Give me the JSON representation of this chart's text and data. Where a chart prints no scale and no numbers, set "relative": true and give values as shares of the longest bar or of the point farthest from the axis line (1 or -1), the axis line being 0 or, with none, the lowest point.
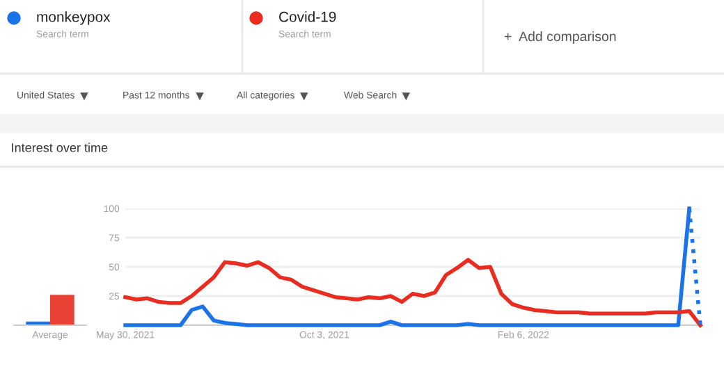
{
  "chart_data": [
    {
      "type": "line",
      "title": "Interest over time",
      "annotations": [
        "Search term",
        "Search term",
        "+  Add comparison",
        "United States",
        "Past 12 months",
        "All categories",
        "Web Search"
      ],
      "x": [
        "2021-05-30",
        "2021-06-06",
        "2021-06-13",
        "2021-06-20",
        "2021-06-27",
        "2021-07-04",
        "2021-07-11",
        "2021-07-18",
        "2021-07-25",
        "2021-08-01",
        "2021-08-08",
        "2021-08-15",
        "2021-08-22",
        "2021-08-29",
        "2021-09-05",
        "2021-09-12",
        "2021-09-19",
        "2021-09-26",
        "2021-10-03",
        "2021-10-10",
        "2021-10-17",
        "2021-10-24",
        "2021-10-31",
        "2021-11-07",
        "2021-11-14",
        "2021-11-21",
        "2021-11-28",
        "2021-12-05",
        "2021-12-12",
        "2021-12-19",
        "2021-12-26",
        "2022-01-02",
        "2022-01-09",
        "2022-01-16",
        "2022-01-23",
        "2022-01-30",
        "2022-02-06",
        "2022-02-13",
        "2022-02-20",
        "2022-02-27",
        "2022-03-06",
        "2022-03-13",
        "2022-03-20",
        "2022-03-27",
        "2022-04-03",
        "2022-04-10",
        "2022-04-17",
        "2022-04-24",
        "2022-05-01",
        "2022-05-08",
        "2022-05-15",
        "2022-05-22",
        "2022-05-29"
      ],
      "series": [
        {
          "name": "monkeypox",
          "color": "#1a73e8",
          "values": [
            0,
            0,
            0,
            0,
            0,
            0,
            13,
            16,
            4,
            2,
            1,
            0,
            0,
            0,
            0,
            0,
            0,
            0,
            0,
            0,
            0,
            0,
            0,
            0,
            3,
            0,
            0,
            0,
            0,
            0,
            0,
            1,
            0,
            0,
            0,
            0,
            0,
            0,
            0,
            0,
            0,
            0,
            0,
            0,
            0,
            0,
            0,
            0,
            0,
            0,
            0,
            100,
            null
          ]
        },
        {
          "name": "Covid-19",
          "color": "#ea2b1f",
          "values": [
            24,
            22,
            23,
            20,
            19,
            19,
            25,
            33,
            41,
            54,
            53,
            51,
            54,
            49,
            41,
            39,
            33,
            30,
            27,
            24,
            23,
            22,
            24,
            23,
            25,
            20,
            27,
            25,
            28,
            43,
            49,
            56,
            49,
            50,
            27,
            18,
            15,
            13,
            12,
            11,
            11,
            11,
            10,
            10,
            10,
            10,
            10,
            10,
            11,
            11,
            11,
            12,
            0
          ]
        },
        {
          "color": "#1a73e8",
          "line_style": "dotted",
          "values": [
            null,
            null,
            null,
            null,
            null,
            null,
            null,
            null,
            null,
            null,
            null,
            null,
            null,
            null,
            null,
            null,
            null,
            null,
            null,
            null,
            null,
            null,
            null,
            null,
            null,
            null,
            null,
            null,
            null,
            null,
            null,
            null,
            null,
            null,
            null,
            null,
            null,
            null,
            null,
            null,
            null,
            null,
            null,
            null,
            null,
            null,
            null,
            null,
            null,
            null,
            null,
            100,
            0
          ]
        }
      ],
      "xlim": [
        "2021-05-30",
        "2022-05-29"
      ],
      "xticks": [
        {
          "value": "2021-05-30",
          "label": "May 30, 2021"
        },
        {
          "value": "2021-10-03",
          "label": "Oct 3, 2021"
        },
        {
          "value": "2022-02-06",
          "label": "Feb 6, 2022"
        }
      ],
      "ylim": [
        0,
        100
      ],
      "yticks": [
        {
          "value": 0,
          "label": null
        },
        25,
        50,
        75,
        100
      ],
      "grid": "y",
      "legend": "top",
      "line_style": "solid",
      "marker": "none"
    },
    {
      "type": "bar",
      "relative": true,
      "categories": [
        "Average"
      ],
      "series": [
        {
          "color": "#1a73e8",
          "values": [
            0.12
          ]
        },
        {
          "color": "#ea4335",
          "values": [
            1
          ]
        }
      ]
    }
  ]
}
